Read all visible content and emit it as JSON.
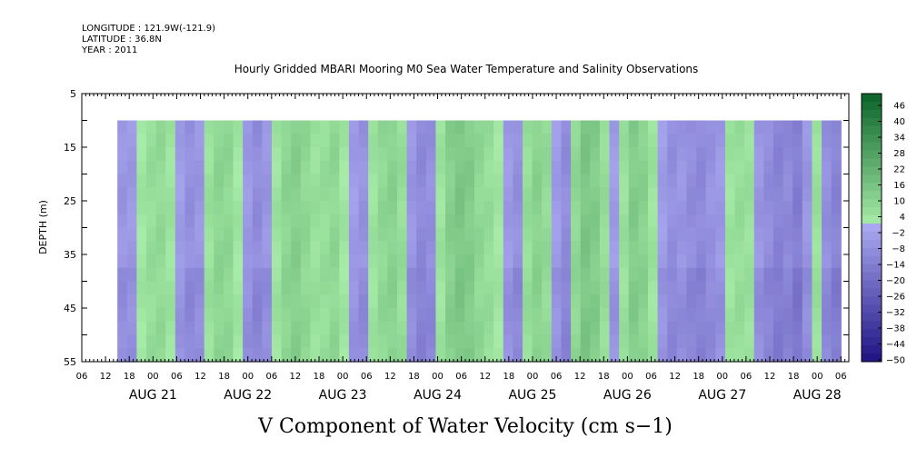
{
  "header": {
    "longitude": "LONGITUDE : 121.9W(-121.9)",
    "latitude": "LATITUDE : 36.8N",
    "year": "YEAR : 2011",
    "title": "Hourly Gridded MBARI Mooring M0 Sea Water Temperature and Salinity Observations"
  },
  "chart_data": {
    "type": "heatmap",
    "title": "V Component of Water Velocity (cm s−1)",
    "ylabel": "DEPTH (m)",
    "xlabel": "",
    "y_axis": {
      "inverted": true,
      "range": [
        5,
        55
      ],
      "ticks": [
        5,
        15,
        25,
        35,
        45,
        55
      ]
    },
    "x_axis": {
      "hour_ticks": [
        "06",
        "12",
        "18",
        "00",
        "06",
        "12",
        "18",
        "00",
        "06",
        "12",
        "18",
        "00",
        "06",
        "12",
        "18",
        "00",
        "06",
        "12",
        "18",
        "00",
        "06",
        "12",
        "18",
        "00",
        "06",
        "12",
        "18",
        "00",
        "06",
        "12",
        "18",
        "00",
        "06"
      ],
      "day_labels": [
        "AUG 21",
        "AUG 22",
        "AUG 23",
        "AUG 24",
        "AUG 25",
        "AUG 26",
        "AUG 27",
        "AUG 28"
      ],
      "range": [
        "2011-08-20T06:00",
        "2011-08-28T08:00"
      ]
    },
    "data_extent": {
      "time_start": "2011-08-20T15:00",
      "time_end": "2011-08-28T06:00",
      "depth_top": 10,
      "depth_bottom": 55
    },
    "colorbar": {
      "labels": [
        "46",
        "40",
        "34",
        "28",
        "22",
        "16",
        "10",
        "4",
        "−2",
        "−8",
        "−14",
        "−20",
        "−26",
        "−32",
        "−38",
        "−44",
        "−50"
      ],
      "min": -50,
      "max": 49,
      "negative_color": "#a7a3ef",
      "positive_color": "#22dd55"
    },
    "column_means": [
      -6,
      -5,
      3,
      6,
      7,
      4,
      -4,
      -8,
      -6,
      5,
      9,
      8,
      3,
      -5,
      -9,
      -6,
      4,
      9,
      11,
      8,
      5,
      6,
      8,
      3,
      -4,
      -7,
      4,
      8,
      10,
      6,
      -6,
      -10,
      -8,
      4,
      11,
      14,
      12,
      8,
      6,
      3,
      -5,
      -8,
      6,
      10,
      7,
      -4,
      -9,
      8,
      14,
      12,
      6,
      -4,
      5,
      12,
      10,
      4,
      -4,
      -8,
      -6,
      -9,
      -10,
      -7,
      -5,
      4,
      6,
      5,
      -6,
      -9,
      -12,
      -10,
      -14,
      -6,
      5,
      -8,
      -12
    ]
  }
}
